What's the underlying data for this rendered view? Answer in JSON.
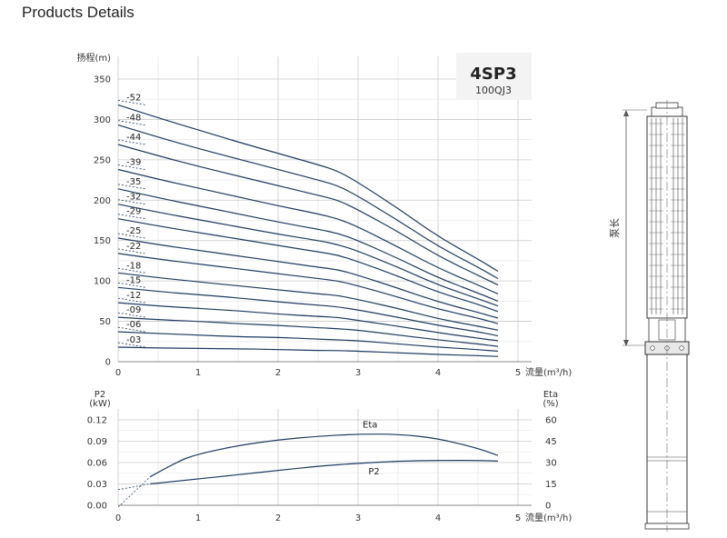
{
  "page": {
    "title": "Products Details"
  },
  "chart_data": [
    {
      "type": "line",
      "model": "4SP3",
      "model_sub": "100QJ3",
      "ylabel": "扬程(m)",
      "xlabel": "流量(m³/h)",
      "xlim": [
        0,
        5
      ],
      "ylim": [
        0,
        350
      ],
      "xticks": [
        "0",
        "1",
        "2",
        "3",
        "4",
        "5"
      ],
      "yticks": [
        "0",
        "50",
        "100",
        "150",
        "200",
        "250",
        "300",
        "350"
      ],
      "grid": true,
      "x": [
        0,
        0.5,
        1,
        1.5,
        2,
        2.5,
        2.75,
        3,
        3.5,
        4,
        4.5,
        4.75
      ],
      "series": [
        {
          "name": "-52",
          "values": [
            318,
            302,
            287,
            272,
            258,
            244,
            236,
            222,
            190,
            155,
            127,
            112
          ]
        },
        {
          "name": "-48",
          "values": [
            293,
            278,
            264,
            251,
            238,
            225,
            218,
            205,
            175,
            143,
            117,
            103
          ]
        },
        {
          "name": "-44",
          "values": [
            269,
            255,
            242,
            230,
            218,
            206,
            200,
            188,
            161,
            131,
            107,
            95
          ]
        },
        {
          "name": "-39",
          "values": [
            238,
            226,
            215,
            204,
            193,
            183,
            177,
            167,
            142,
            116,
            95,
            84
          ]
        },
        {
          "name": "-35",
          "values": [
            214,
            203,
            193,
            183,
            173,
            164,
            159,
            150,
            128,
            104,
            85,
            75
          ]
        },
        {
          "name": "-32",
          "values": [
            195,
            185,
            176,
            167,
            158,
            150,
            145,
            137,
            117,
            95,
            78,
            69
          ]
        },
        {
          "name": "-29",
          "values": [
            177,
            168,
            160,
            152,
            144,
            136,
            132,
            124,
            106,
            86,
            71,
            62
          ]
        },
        {
          "name": "-25",
          "values": [
            153,
            145,
            138,
            131,
            124,
            117,
            114,
            107,
            91,
            74,
            61,
            54
          ]
        },
        {
          "name": "-22",
          "values": [
            134,
            127,
            121,
            115,
            109,
            103,
            100,
            94,
            80,
            65,
            54,
            47
          ]
        },
        {
          "name": "-18",
          "values": [
            110,
            104,
            99,
            94,
            89,
            84,
            82,
            77,
            66,
            53,
            44,
            39
          ]
        },
        {
          "name": "-15",
          "values": [
            92,
            87,
            83,
            79,
            74,
            70,
            68,
            64,
            55,
            45,
            37,
            32
          ]
        },
        {
          "name": "-12",
          "values": [
            73,
            69,
            66,
            63,
            59,
            56,
            55,
            51,
            44,
            36,
            29,
            26
          ]
        },
        {
          "name": "-09",
          "values": [
            55,
            52,
            50,
            47,
            45,
            42,
            41,
            39,
            33,
            27,
            22,
            19
          ]
        },
        {
          "name": "-06",
          "values": [
            37,
            35,
            33,
            31,
            30,
            28,
            27,
            26,
            22,
            18,
            15,
            13
          ]
        },
        {
          "name": "-03",
          "values": [
            18,
            17,
            16.5,
            16,
            15,
            14,
            13.7,
            13,
            11,
            9,
            7.5,
            6.5
          ]
        }
      ],
      "line_color": "#1f3a5f"
    },
    {
      "type": "line",
      "ylabel_left": [
        "P2",
        "(kW)"
      ],
      "ylabel_right": [
        "Eta",
        "(%)"
      ],
      "xlabel": "流量(m³/h)",
      "xlim": [
        0,
        5
      ],
      "ylim_left": [
        0,
        0.12
      ],
      "ylim_right": [
        0,
        60
      ],
      "xticks": [
        "0",
        "1",
        "2",
        "3",
        "4",
        "5"
      ],
      "yticks_left": [
        "0.00",
        "0.03",
        "0.06",
        "0.09",
        "0.12"
      ],
      "yticks_right": [
        "0",
        "15",
        "30",
        "45",
        "60"
      ],
      "grid": true,
      "series": [
        {
          "name": "Eta",
          "axis": "right",
          "x": [
            0.4,
            0.75,
            1,
            1.5,
            2,
            2.5,
            3,
            3.5,
            4,
            4.5,
            4.75
          ],
          "values": [
            20,
            31,
            36,
            42,
            46,
            48.5,
            50,
            50,
            47,
            40,
            35
          ]
        },
        {
          "name": "P2",
          "axis": "left",
          "x": [
            0.4,
            1,
            1.5,
            2,
            2.5,
            3,
            3.5,
            4,
            4.5,
            4.75
          ],
          "values": [
            0.03,
            0.037,
            0.043,
            0.049,
            0.055,
            0.059,
            0.062,
            0.063,
            0.063,
            0.062
          ]
        }
      ],
      "label_eta": "Eta",
      "label_p2": "P2",
      "line_color": "#1f3a5f"
    }
  ],
  "pump_drawing": {
    "length_label": "泵长"
  }
}
